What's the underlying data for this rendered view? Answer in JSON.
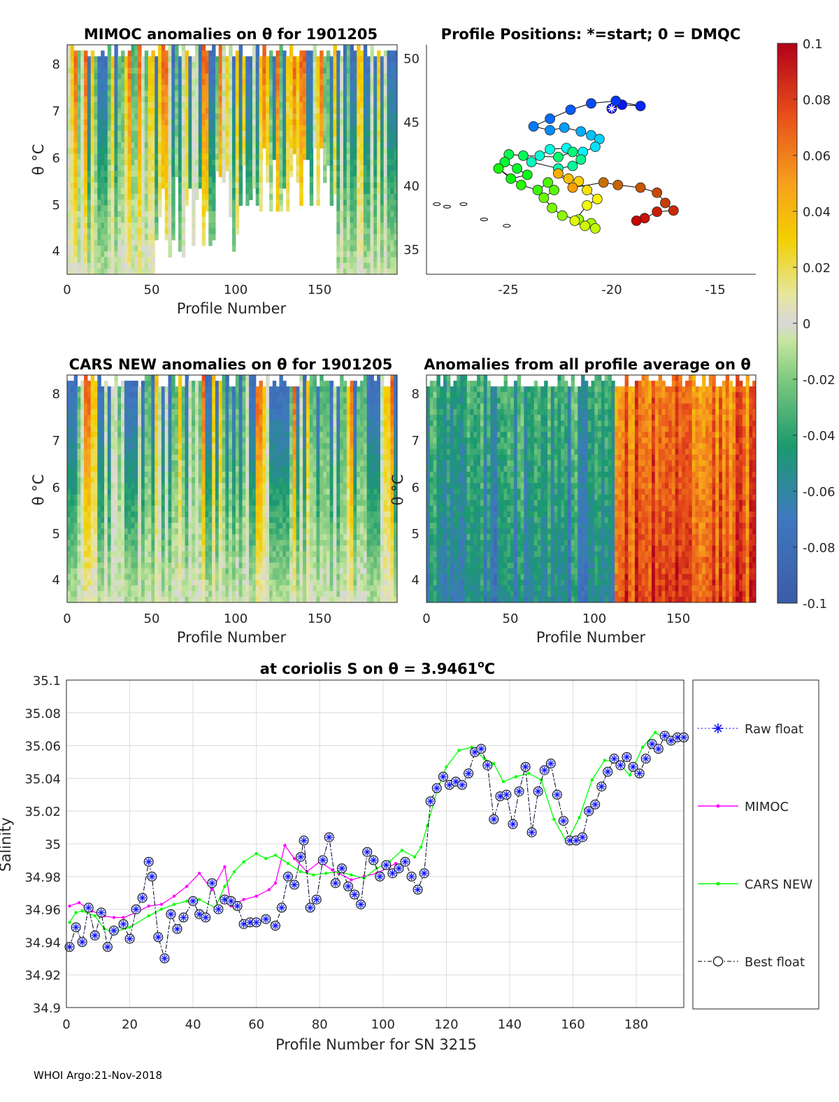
{
  "footer": "WHOI Argo:21-Nov-2018",
  "colorbar": {
    "ticks": [
      "0.1",
      "0.08",
      "0.06",
      "0.04",
      "0.02",
      "0",
      "-0.02",
      "-0.04",
      "-0.06",
      "-0.08",
      "-0.1"
    ],
    "range": [
      -0.1,
      0.1
    ]
  },
  "panels": {
    "mimoc": {
      "title": "MIMOC anomalies on θ  for 1901205",
      "xlabel": "Profile Number",
      "ylabel": "θ °C",
      "xticks": [
        "0",
        "50",
        "100",
        "150"
      ],
      "yticks": [
        "4",
        "5",
        "6",
        "7",
        "8"
      ]
    },
    "positions": {
      "title": "Profile Positions: *=start; 0 = DMQC",
      "xticks": [
        "-25",
        "-20",
        "-15"
      ],
      "yticks": [
        "35",
        "40",
        "45",
        "50"
      ]
    },
    "cars": {
      "title": "CARS NEW anomalies on θ for 1901205",
      "xlabel": "Profile Number",
      "ylabel": "θ °C",
      "xticks": [
        "0",
        "50",
        "100",
        "150"
      ],
      "yticks": [
        "4",
        "5",
        "6",
        "7",
        "8"
      ]
    },
    "allavg": {
      "title": "Anomalies from all profile average on θ",
      "xlabel": "Profile Number",
      "ylabel": "θ °C",
      "xticks": [
        "0",
        "50",
        "100",
        "150"
      ],
      "yticks": [
        "4",
        "5",
        "6",
        "7",
        "8"
      ]
    },
    "salinity": {
      "title_prefix": "at coriolis S on θ = 3.9461",
      "title_suffix": "C",
      "xlabel": "Profile Number for SN 3215",
      "ylabel": "Salinity",
      "xticks": [
        "0",
        "20",
        "40",
        "60",
        "80",
        "100",
        "120",
        "140",
        "160",
        "180"
      ],
      "yticks": [
        "34.9",
        "34.92",
        "34.94",
        "34.96",
        "34.98",
        "35",
        "35.02",
        "35.04",
        "35.06",
        "35.08",
        "35.1"
      ],
      "legend": [
        "Raw float",
        "MIMOC",
        "CARS NEW",
        "Best float"
      ]
    }
  },
  "chart_data": [
    {
      "type": "heatmap",
      "title": "MIMOC anomalies on θ  for 1901205",
      "xlabel": "Profile Number",
      "ylabel": "θ °C",
      "xlim": [
        0,
        196
      ],
      "ylim": [
        3.5,
        8.4
      ],
      "clim": [
        -0.1,
        0.1
      ]
    },
    {
      "type": "scatter",
      "title": "Profile Positions: *=start; 0 = DMQC",
      "xlim": [
        -29,
        -13
      ],
      "ylim": [
        33,
        51
      ],
      "track": [
        [
          -20,
          46
        ],
        [
          -19.5,
          46.3
        ],
        [
          -18.6,
          46.2
        ],
        [
          -19.8,
          46.6
        ],
        [
          -21,
          46.4
        ],
        [
          -22,
          45.9
        ],
        [
          -23,
          45.2
        ],
        [
          -23.8,
          44.6
        ],
        [
          -23,
          44.3
        ],
        [
          -22.3,
          44.5
        ],
        [
          -21.5,
          44.2
        ],
        [
          -21,
          43.9
        ],
        [
          -20.6,
          43.6
        ],
        [
          -20.8,
          43
        ],
        [
          -21.4,
          42.6
        ],
        [
          -22.2,
          42.9
        ],
        [
          -23,
          42.8
        ],
        [
          -23.5,
          42.3
        ],
        [
          -23.9,
          41.8
        ],
        [
          -22.6,
          41.3
        ],
        [
          -21.9,
          41.5
        ],
        [
          -21.5,
          42
        ],
        [
          -21.9,
          42.6
        ],
        [
          -22.6,
          42.2
        ],
        [
          -24.3,
          42.3
        ],
        [
          -25,
          42.4
        ],
        [
          -25.2,
          41.8
        ],
        [
          -24.6,
          41.3
        ],
        [
          -24.1,
          40.8
        ],
        [
          -24.9,
          40.5
        ],
        [
          -25.5,
          41.3
        ],
        [
          -24.4,
          40
        ],
        [
          -23.6,
          39.6
        ],
        [
          -23.1,
          40.2
        ],
        [
          -22.8,
          39.6
        ],
        [
          -23.3,
          39
        ],
        [
          -22.9,
          38.2
        ],
        [
          -22.4,
          37.6
        ],
        [
          -21.6,
          37.3
        ],
        [
          -21,
          37
        ],
        [
          -20.8,
          36.6
        ],
        [
          -21.3,
          36.8
        ],
        [
          -21.8,
          37.2
        ],
        [
          -21.2,
          38.4
        ],
        [
          -20.7,
          38.9
        ],
        [
          -21.2,
          39.6
        ],
        [
          -21.6,
          40.3
        ],
        [
          -22.1,
          40.5
        ],
        [
          -22.6,
          40.9
        ],
        [
          -21.9,
          39.8
        ],
        [
          -20.4,
          40.2
        ],
        [
          -19.7,
          40
        ],
        [
          -18.6,
          39.8
        ],
        [
          -17.8,
          39.4
        ],
        [
          -17.4,
          38.6
        ],
        [
          -17,
          38
        ],
        [
          -17.8,
          37.9
        ],
        [
          -18.4,
          37.4
        ],
        [
          -18.8,
          37.2
        ]
      ]
    },
    {
      "type": "heatmap",
      "title": "CARS NEW anomalies on θ for 1901205",
      "xlabel": "Profile Number",
      "ylabel": "θ °C",
      "xlim": [
        0,
        196
      ],
      "ylim": [
        3.5,
        8.4
      ],
      "clim": [
        -0.1,
        0.1
      ]
    },
    {
      "type": "heatmap",
      "title": "Anomalies from all profile average on θ",
      "xlabel": "Profile Number",
      "ylabel": "θ °C",
      "xlim": [
        0,
        196
      ],
      "ylim": [
        3.5,
        8.4
      ],
      "clim": [
        -0.1,
        0.1
      ]
    },
    {
      "type": "line",
      "title": "at coriolis S on θ = 3.9461°C",
      "xlabel": "Profile Number for SN 3215",
      "ylabel": "Salinity",
      "xlim": [
        0,
        195
      ],
      "ylim": [
        34.9,
        35.1
      ],
      "series": [
        {
          "name": "MIMOC",
          "color": "#ff00ff",
          "x": [
            1,
            4,
            8,
            12,
            15,
            18,
            22,
            26,
            30,
            34,
            38,
            42,
            46,
            50,
            52,
            56,
            60,
            64,
            66,
            69,
            72,
            76,
            80,
            84,
            86,
            90,
            94,
            98,
            102,
            104,
            106
          ],
          "y": [
            34.962,
            34.964,
            34.959,
            34.956,
            34.955,
            34.955,
            34.958,
            34.962,
            34.963,
            34.968,
            34.974,
            34.982,
            34.972,
            34.986,
            34.962,
            34.966,
            34.968,
            34.972,
            34.976,
            34.999,
            34.991,
            34.983,
            34.989,
            34.984,
            34.982,
            34.978,
            34.98,
            34.982,
            34.986,
            34.988,
            34.987
          ]
        },
        {
          "name": "CARS NEW",
          "color": "#00ff00",
          "x": [
            1,
            3,
            5,
            9,
            12,
            15,
            20,
            26,
            30,
            34,
            38,
            42,
            47,
            50,
            53,
            56,
            60,
            63,
            66,
            70,
            74,
            78,
            82,
            86,
            90,
            94,
            98,
            102,
            106,
            110,
            112,
            114,
            117,
            120,
            124,
            128,
            132,
            135,
            138,
            142,
            146,
            150,
            154,
            158,
            162,
            166,
            170,
            174,
            178,
            182,
            186,
            190,
            194
          ],
          "y": [
            34.952,
            34.958,
            34.959,
            34.956,
            34.948,
            34.946,
            34.949,
            34.956,
            34.96,
            34.963,
            34.965,
            34.966,
            34.961,
            34.974,
            34.983,
            34.989,
            34.994,
            34.991,
            34.993,
            34.988,
            34.983,
            34.981,
            34.982,
            34.983,
            34.981,
            34.979,
            34.985,
            34.989,
            34.996,
            34.992,
            34.998,
            35.011,
            35.032,
            35.047,
            35.057,
            35.059,
            35.052,
            35.049,
            35.038,
            35.041,
            35.043,
            35.039,
            35.015,
            35.001,
            35.016,
            35.039,
            35.051,
            35.05,
            35.042,
            35.059,
            35.068,
            35.063,
            35.064
          ]
        },
        {
          "name": "Raw float",
          "color": "#0000ff",
          "x": [
            1,
            3,
            5,
            7,
            9,
            11,
            13,
            15,
            18,
            20,
            22,
            24,
            26,
            27,
            29,
            31,
            33,
            35,
            37,
            40,
            42,
            44,
            46,
            48,
            50,
            52,
            54,
            56,
            58,
            60,
            63,
            66,
            68,
            70,
            72,
            74,
            75,
            77,
            79,
            81,
            83,
            85,
            87,
            89,
            91,
            93,
            95,
            97,
            99,
            101,
            103,
            105,
            107,
            109,
            111,
            113,
            115,
            117,
            119,
            121,
            123,
            125,
            127,
            129,
            131,
            133,
            135,
            137,
            139,
            141,
            143,
            145,
            147,
            149,
            151,
            153,
            155,
            157,
            159,
            161,
            163,
            165,
            167,
            169,
            171,
            173,
            175,
            177,
            179,
            181,
            183,
            185,
            187,
            189,
            191,
            193,
            195
          ],
          "y": [
            34.937,
            34.949,
            34.94,
            34.961,
            34.944,
            34.958,
            34.937,
            34.947,
            34.951,
            34.942,
            34.96,
            34.967,
            34.989,
            34.98,
            34.943,
            34.93,
            34.957,
            34.948,
            34.955,
            34.965,
            34.957,
            34.955,
            34.976,
            34.96,
            34.966,
            34.965,
            34.962,
            34.951,
            34.952,
            34.952,
            34.954,
            34.95,
            34.961,
            34.98,
            34.975,
            34.992,
            35.002,
            34.961,
            34.966,
            34.99,
            35.004,
            34.976,
            34.985,
            34.974,
            34.969,
            34.963,
            34.995,
            34.99,
            34.98,
            34.987,
            34.982,
            34.985,
            34.989,
            34.98,
            34.972,
            34.982,
            35.026,
            35.034,
            35.041,
            35.036,
            35.038,
            35.036,
            35.043,
            35.056,
            35.058,
            35.048,
            35.015,
            35.029,
            35.03,
            35.012,
            35.032,
            35.047,
            35.007,
            35.032,
            35.045,
            35.049,
            35.03,
            35.014,
            35.002,
            35.002,
            35.004,
            35.02,
            35.024,
            35.035,
            35.044,
            35.052,
            35.048,
            35.053,
            35.047,
            35.043,
            35.052,
            35.061,
            35.058,
            35.066,
            35.063,
            35.065,
            35.065
          ]
        },
        {
          "name": "Best float",
          "color": "#000000",
          "x": [
            1,
            3,
            5,
            7,
            9,
            11,
            13,
            15,
            18,
            20,
            22,
            24,
            26,
            27,
            29,
            31,
            33,
            35,
            37,
            40,
            42,
            44,
            46,
            48,
            50,
            52,
            54,
            56,
            58,
            60,
            63,
            66,
            68,
            70,
            72,
            74,
            75,
            77,
            79,
            81,
            83,
            85,
            87,
            89,
            91,
            93,
            95,
            97,
            99,
            101,
            103,
            105,
            107,
            109,
            111,
            113,
            115,
            117,
            119,
            121,
            123,
            125,
            127,
            129,
            131,
            133,
            135,
            137,
            139,
            141,
            143,
            145,
            147,
            149,
            151,
            153,
            155,
            157,
            159,
            161,
            163,
            165,
            167,
            169,
            171,
            173,
            175,
            177,
            179,
            181,
            183,
            185,
            187,
            189,
            191,
            193,
            195
          ],
          "y": [
            34.937,
            34.949,
            34.94,
            34.961,
            34.944,
            34.958,
            34.937,
            34.947,
            34.951,
            34.942,
            34.96,
            34.967,
            34.989,
            34.98,
            34.943,
            34.93,
            34.957,
            34.948,
            34.955,
            34.965,
            34.957,
            34.955,
            34.976,
            34.96,
            34.966,
            34.965,
            34.962,
            34.951,
            34.952,
            34.952,
            34.954,
            34.95,
            34.961,
            34.98,
            34.975,
            34.992,
            35.002,
            34.961,
            34.966,
            34.99,
            35.004,
            34.976,
            34.985,
            34.974,
            34.969,
            34.963,
            34.995,
            34.99,
            34.98,
            34.987,
            34.982,
            34.985,
            34.989,
            34.98,
            34.972,
            34.982,
            35.026,
            35.034,
            35.041,
            35.036,
            35.038,
            35.036,
            35.043,
            35.056,
            35.058,
            35.048,
            35.015,
            35.029,
            35.03,
            35.012,
            35.032,
            35.047,
            35.007,
            35.032,
            35.045,
            35.049,
            35.03,
            35.014,
            35.002,
            35.002,
            35.004,
            35.02,
            35.024,
            35.035,
            35.044,
            35.052,
            35.048,
            35.053,
            35.047,
            35.043,
            35.052,
            35.061,
            35.058,
            35.066,
            35.063,
            35.065,
            35.065
          ]
        }
      ]
    }
  ]
}
